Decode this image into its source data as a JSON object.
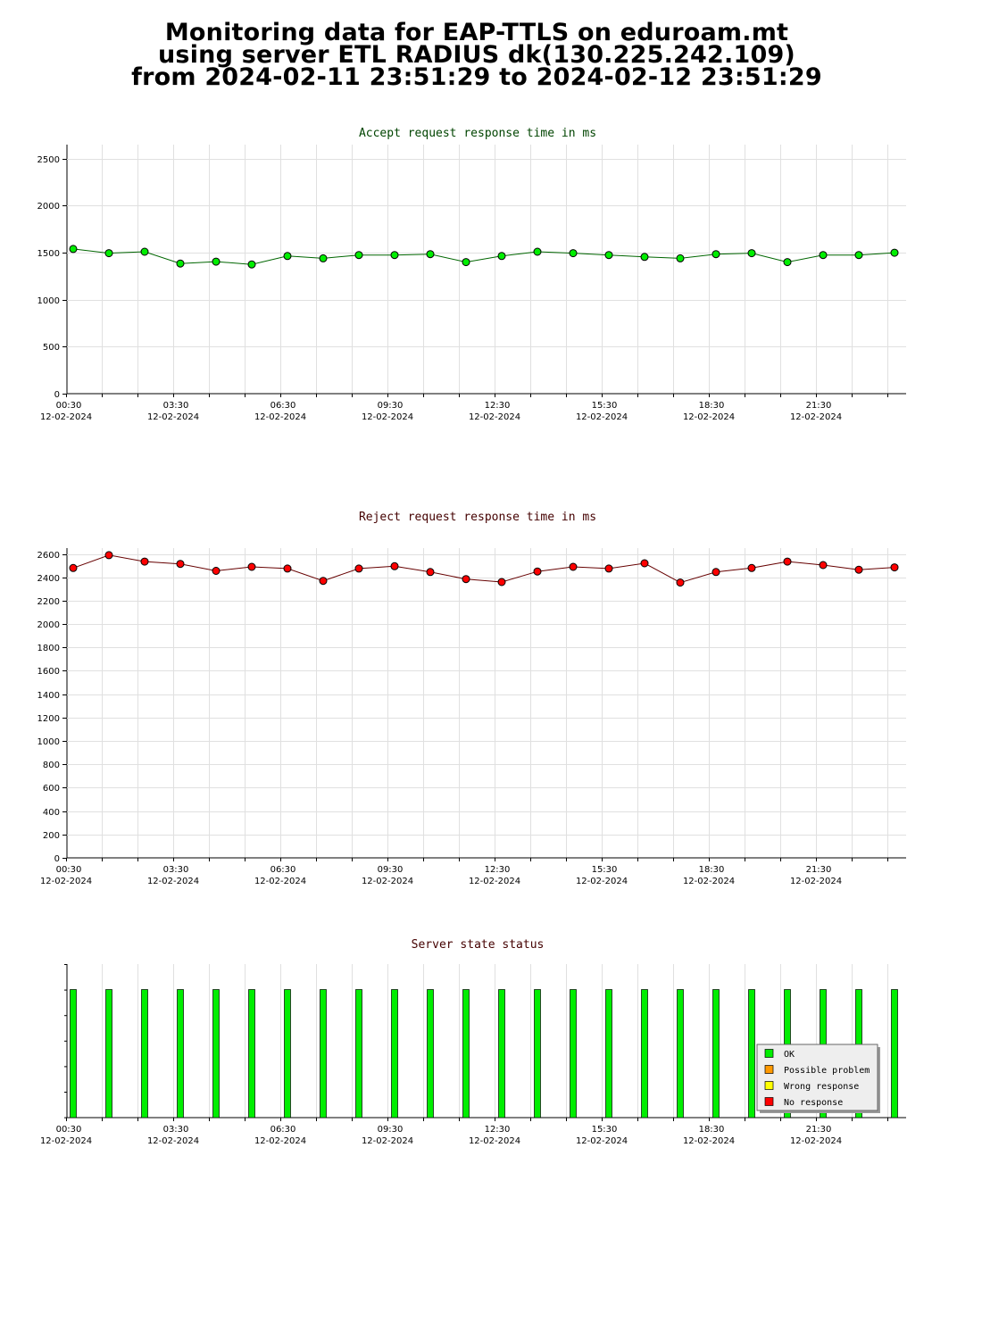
{
  "header": {
    "line1": "Monitoring data for EAP-TTLS on eduroam.mt",
    "line2": "using server ETL RADIUS dk(130.225.242.109)",
    "line3": "from 2024-02-11 23:51:29 to 2024-02-12 23:51:29"
  },
  "x_ticks": [
    {
      "time": "00:30",
      "date": "12-02-2024"
    },
    {
      "time": "03:30",
      "date": "12-02-2024"
    },
    {
      "time": "06:30",
      "date": "12-02-2024"
    },
    {
      "time": "09:30",
      "date": "12-02-2024"
    },
    {
      "time": "12:30",
      "date": "12-02-2024"
    },
    {
      "time": "15:30",
      "date": "12-02-2024"
    },
    {
      "time": "18:30",
      "date": "12-02-2024"
    },
    {
      "time": "21:30",
      "date": "12-02-2024"
    }
  ],
  "chart_data": [
    {
      "type": "line",
      "title": "Accept request response time in ms",
      "ylim": [
        0,
        2650
      ],
      "yticks": [
        0,
        500,
        1000,
        1500,
        2000,
        2500
      ],
      "grid": true,
      "colors": {
        "title": "#004400",
        "line": "#006600",
        "marker": "#00ee00"
      },
      "x": [
        "00:30",
        "01:30",
        "02:30",
        "03:30",
        "04:30",
        "05:30",
        "06:30",
        "07:30",
        "08:30",
        "09:30",
        "10:30",
        "11:30",
        "12:30",
        "13:30",
        "14:30",
        "15:30",
        "16:30",
        "17:30",
        "18:30",
        "19:30",
        "20:30",
        "21:30",
        "22:30",
        "23:30"
      ],
      "values": [
        1540,
        1495,
        1510,
        1385,
        1405,
        1375,
        1465,
        1440,
        1475,
        1475,
        1485,
        1400,
        1465,
        1510,
        1495,
        1475,
        1455,
        1440,
        1485,
        1495,
        1400,
        1475,
        1475,
        1500
      ]
    },
    {
      "type": "line",
      "title": "Reject request response time in ms",
      "ylim": [
        0,
        2650
      ],
      "yticks": [
        0,
        200,
        400,
        600,
        800,
        1000,
        1200,
        1400,
        1600,
        1800,
        2000,
        2200,
        2400,
        2600
      ],
      "grid": true,
      "colors": {
        "title": "#440000",
        "line": "#660000",
        "marker": "#ff0000"
      },
      "x": [
        "00:30",
        "01:30",
        "02:30",
        "03:30",
        "04:30",
        "05:30",
        "06:30",
        "07:30",
        "08:30",
        "09:30",
        "10:30",
        "11:30",
        "12:30",
        "13:30",
        "14:30",
        "15:30",
        "16:30",
        "17:30",
        "18:30",
        "19:30",
        "20:30",
        "21:30",
        "22:30",
        "23:30"
      ],
      "values": [
        2480,
        2590,
        2535,
        2515,
        2455,
        2490,
        2475,
        2370,
        2475,
        2495,
        2445,
        2385,
        2360,
        2450,
        2490,
        2475,
        2520,
        2355,
        2445,
        2480,
        2535,
        2505,
        2465,
        2485
      ]
    },
    {
      "type": "bar",
      "title": "Server state status",
      "colors": {
        "title": "#440000"
      },
      "legend_position": "bottom-right",
      "legend": [
        {
          "label": "OK",
          "color": "#00ee00"
        },
        {
          "label": "Possible problem",
          "color": "#ff9900"
        },
        {
          "label": "Wrong response",
          "color": "#ffff00"
        },
        {
          "label": "No response",
          "color": "#ff0000"
        }
      ],
      "x": [
        "00:30",
        "01:30",
        "02:30",
        "03:30",
        "04:30",
        "05:30",
        "06:30",
        "07:30",
        "08:30",
        "09:30",
        "10:30",
        "11:30",
        "12:30",
        "13:30",
        "14:30",
        "15:30",
        "16:30",
        "17:30",
        "18:30",
        "19:30",
        "20:30",
        "21:30",
        "22:30",
        "23:30"
      ],
      "states": [
        "OK",
        "OK",
        "OK",
        "OK",
        "OK",
        "OK",
        "OK",
        "OK",
        "OK",
        "OK",
        "OK",
        "OK",
        "OK",
        "OK",
        "OK",
        "OK",
        "OK",
        "OK",
        "OK",
        "OK",
        "OK",
        "OK",
        "OK",
        "OK"
      ]
    }
  ]
}
